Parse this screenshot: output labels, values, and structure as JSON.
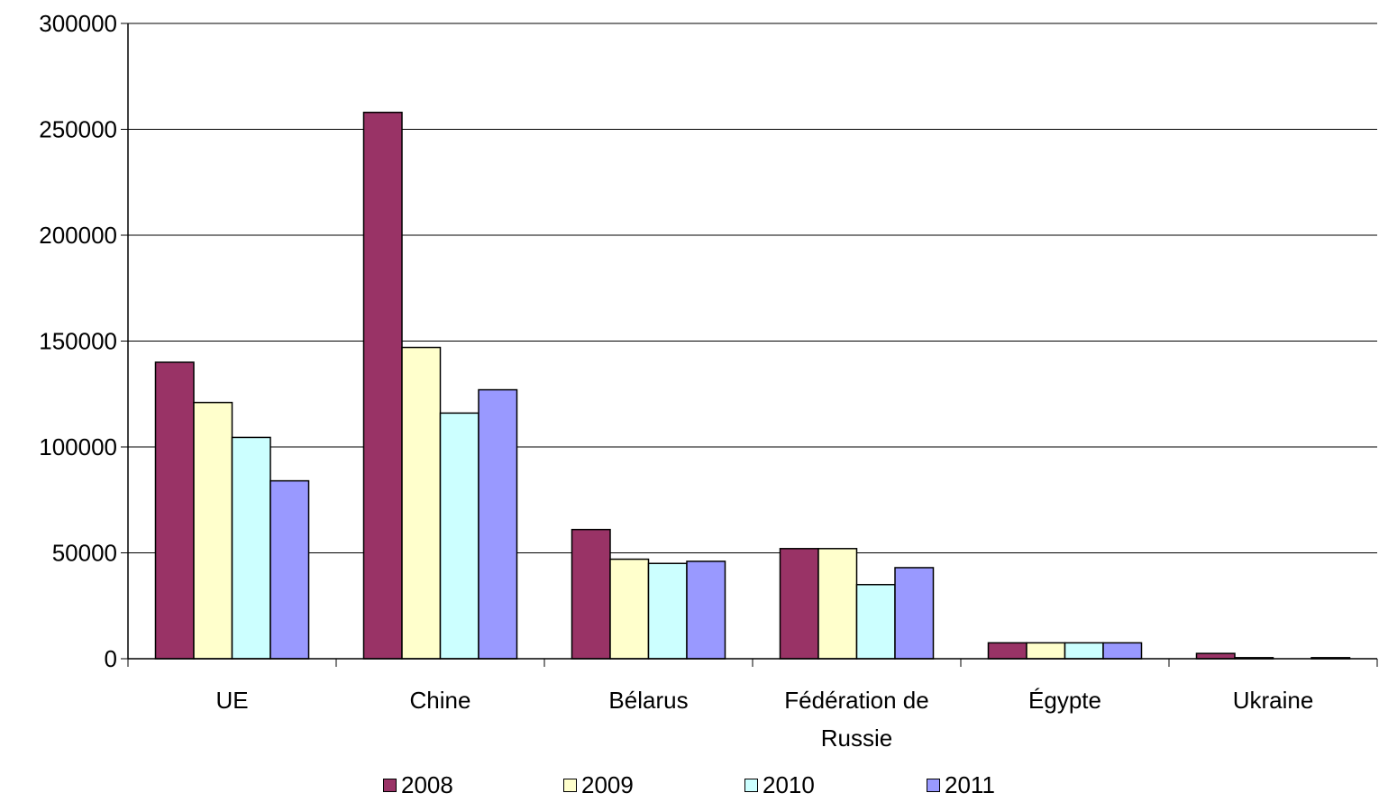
{
  "chart_data": {
    "type": "bar",
    "categories": [
      "UE",
      "Chine",
      "Bélarus",
      "Fédération de\nRussie",
      "Égypte",
      "Ukraine"
    ],
    "category_lines": [
      [
        "UE"
      ],
      [
        "Chine"
      ],
      [
        "Bélarus"
      ],
      [
        "Fédération de",
        "Russie"
      ],
      [
        "Égypte"
      ],
      [
        "Ukraine"
      ]
    ],
    "series": [
      {
        "name": "2008",
        "color": "#993366",
        "values": [
          140000,
          258000,
          61000,
          52000,
          7500,
          2500
        ]
      },
      {
        "name": "2009",
        "color": "#FFFFCC",
        "values": [
          121000,
          147000,
          47000,
          52000,
          7500,
          500
        ]
      },
      {
        "name": "2010",
        "color": "#CCFFFF",
        "values": [
          104500,
          116000,
          45000,
          35000,
          7500,
          0
        ]
      },
      {
        "name": "2011",
        "color": "#9999FF",
        "values": [
          84000,
          127000,
          46000,
          43000,
          7500,
          500
        ]
      }
    ],
    "ylim": [
      0,
      300000
    ],
    "yticks": [
      "0",
      "50000",
      "100000",
      "150000",
      "200000",
      "250000",
      "300000"
    ],
    "grid": true,
    "legend_position": "bottom",
    "title": "",
    "xlabel": "",
    "ylabel": ""
  }
}
